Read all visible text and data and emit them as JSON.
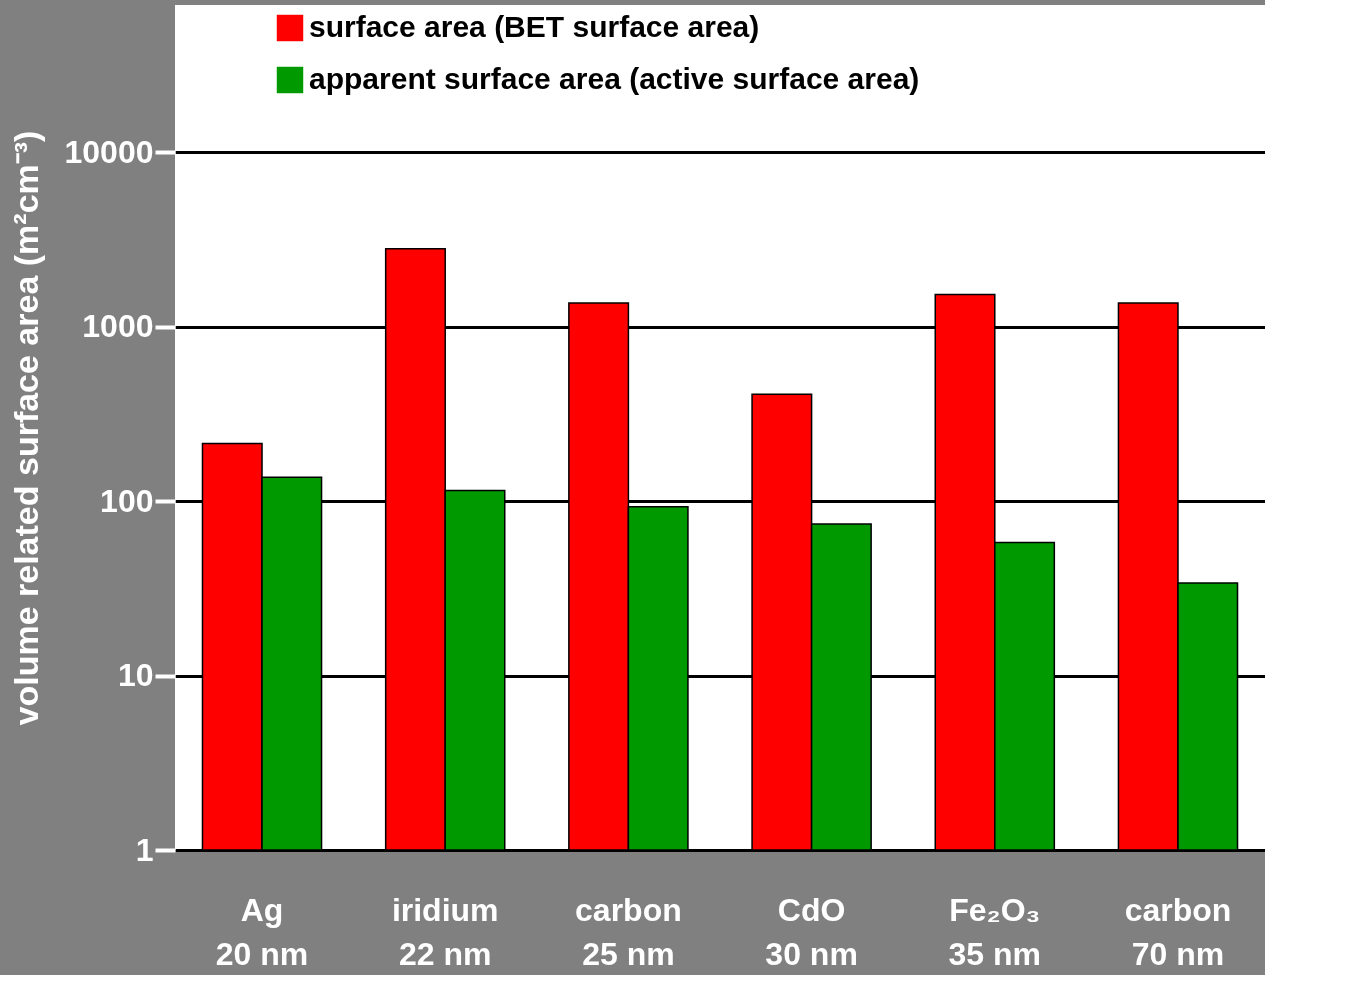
{
  "chart_data": {
    "type": "bar",
    "ylabel": "volume related surface area (m²cm⁻³)",
    "categories": [
      "Ag\n20 nm",
      "iridium\n22 nm",
      "carbon\n25 nm",
      "CdO\n30 nm",
      "Fe₂O₃\n35 nm",
      "carbon\n70 nm"
    ],
    "series": [
      {
        "name": "surface area (BET surface area)",
        "color": "#ff0000",
        "values": [
          214,
          2800,
          1370,
          410,
          1530,
          1370
        ]
      },
      {
        "name": "apparent surface area (active  surface area)",
        "color": "#009900",
        "values": [
          137,
          115,
          93,
          74,
          58,
          34
        ]
      }
    ],
    "log": true,
    "ylim": [
      1,
      70000
    ],
    "yticks": [
      1,
      10,
      100,
      1000,
      10000
    ],
    "grid": "y",
    "legend": "top"
  }
}
